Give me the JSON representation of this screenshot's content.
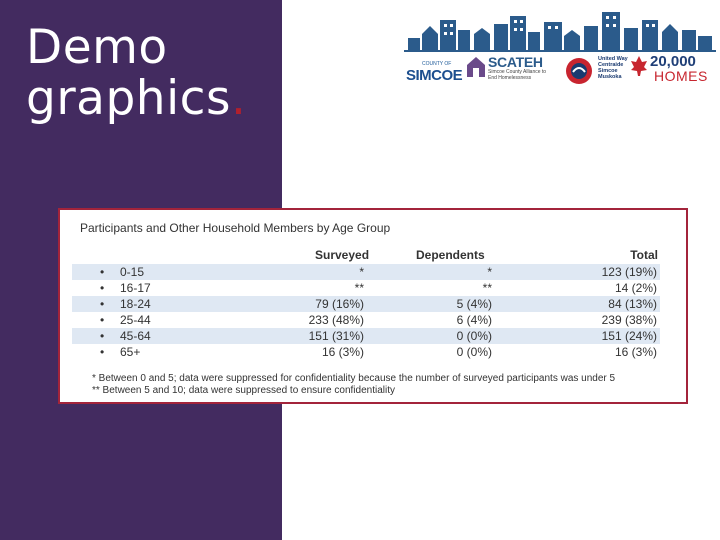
{
  "slide": {
    "title_line1": "Demo",
    "title_line2": "graphics",
    "title_dot": ".",
    "colors": {
      "band": "#432b60",
      "accent": "#b1202d",
      "panel_border": "#a3243b",
      "row_shade": "#dfe8f3"
    }
  },
  "logos": {
    "simcoe_small": "COUNTY OF",
    "simcoe": "SIMCOE",
    "scateh": "SCATEH",
    "scateh_sub": "Simcoe County Alliance to End Homelessness",
    "unitedway": "United Way Centraide Simcoe Muskoka",
    "homes_num": "20,000",
    "homes_word": "HOMES"
  },
  "table": {
    "title": "Participants and Other Household Members by Age Group",
    "headers": [
      "Surveyed",
      "Dependents",
      "Total"
    ],
    "bullet": "•",
    "rows": [
      {
        "label": "0-15",
        "surveyed": "*",
        "dependents": "*",
        "total": "123 (19%)"
      },
      {
        "label": "16-17",
        "surveyed": "**",
        "dependents": "**",
        "total": "14 (2%)"
      },
      {
        "label": "18-24",
        "surveyed": "79 (16%)",
        "dependents": "5 (4%)",
        "total": "84 (13%)"
      },
      {
        "label": "25-44",
        "surveyed": "233 (48%)",
        "dependents": "6 (4%)",
        "total": "239 (38%)"
      },
      {
        "label": "45-64",
        "surveyed": "151 (31%)",
        "dependents": "0 (0%)",
        "total": "151 (24%)"
      },
      {
        "label": "65+",
        "surveyed": "16 (3%)",
        "dependents": "0 (0%)",
        "total": "16 (3%)"
      }
    ],
    "footnote1": "*  Between 0 and 5; data were suppressed for confidentiality because the number of surveyed participants was under 5",
    "footnote2": "** Between 5 and 10; data were suppressed to ensure confidentiality"
  }
}
